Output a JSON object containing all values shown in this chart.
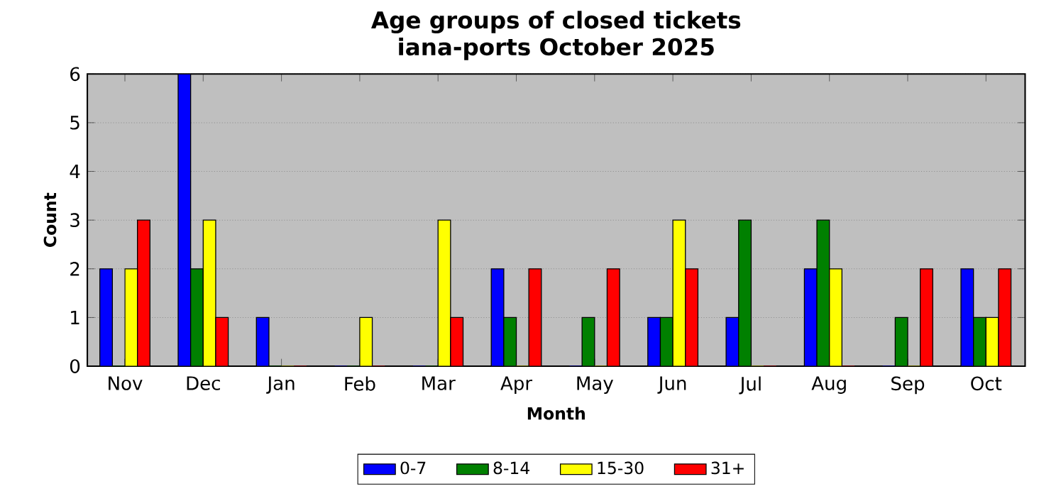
{
  "chart_data": {
    "type": "bar",
    "title": "Age groups of closed tickets",
    "subtitle": "iana-ports October 2025",
    "xlabel": "Month",
    "ylabel": "Count",
    "categories": [
      "Nov",
      "Dec",
      "Jan",
      "Feb",
      "Mar",
      "Apr",
      "May",
      "Jun",
      "Jul",
      "Aug",
      "Sep",
      "Oct"
    ],
    "series": [
      {
        "name": "0-7",
        "color": "#0000ff",
        "values": [
          2,
          6,
          1,
          0,
          0,
          2,
          0,
          1,
          1,
          2,
          0,
          2
        ]
      },
      {
        "name": "8-14",
        "color": "#008000",
        "values": [
          0,
          2,
          0,
          0,
          0,
          1,
          1,
          1,
          3,
          3,
          1,
          1
        ]
      },
      {
        "name": "15-30",
        "color": "#ffff00",
        "values": [
          2,
          3,
          0,
          1,
          3,
          0,
          0,
          3,
          0,
          2,
          0,
          1
        ]
      },
      {
        "name": "31+",
        "color": "#ff0000",
        "values": [
          3,
          1,
          0,
          0,
          1,
          2,
          2,
          2,
          0,
          0,
          2,
          2
        ]
      }
    ],
    "ylim": [
      0,
      6
    ],
    "yticks": [
      0,
      1,
      2,
      3,
      4,
      5,
      6
    ],
    "grid": "y",
    "legend": "bottom"
  }
}
